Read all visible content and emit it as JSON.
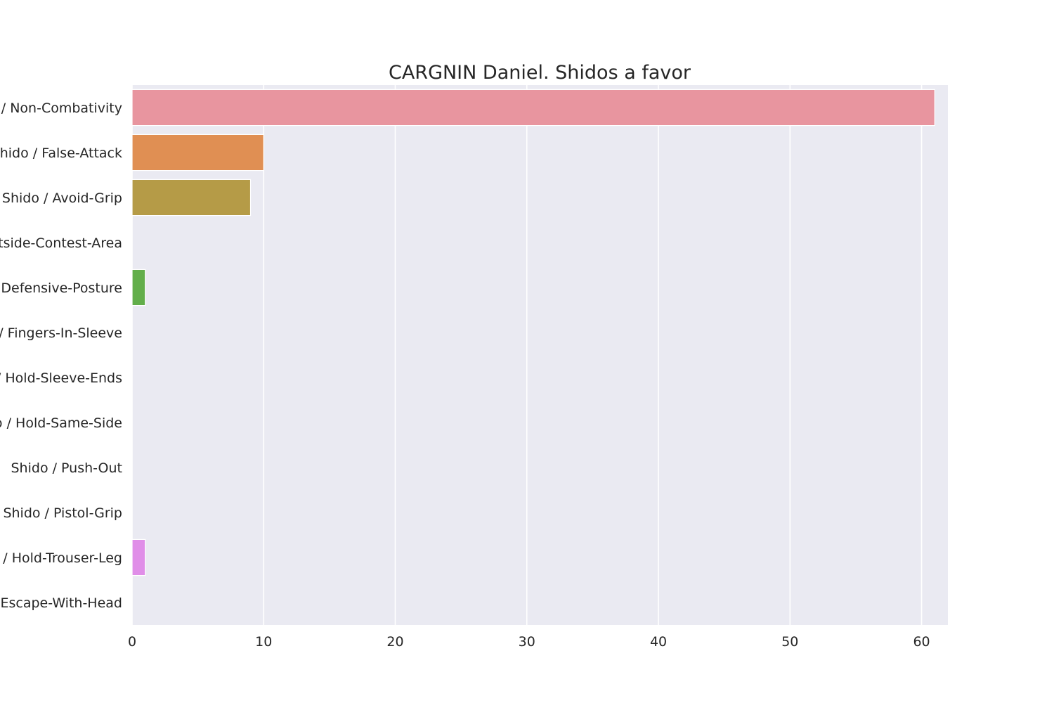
{
  "chart_data": {
    "type": "bar",
    "orientation": "horizontal",
    "title": "CARGNIN Daniel. Shidos a favor",
    "xlabel": "",
    "ylabel": "",
    "xlim": [
      0,
      62
    ],
    "xticks": [
      0,
      10,
      20,
      30,
      40,
      50,
      60
    ],
    "grid": true,
    "legend": "none",
    "categories": [
      "Shido / Non-Combativity",
      "Shido / False-Attack",
      "Shido / Avoid-Grip",
      "Shido / Outside-Contest-Area",
      "Shido / Defensive-Posture",
      "Shido / Fingers-In-Sleeve",
      "Shido / Hold-Sleeve-Ends",
      "Shido / Hold-Same-Side",
      "Shido / Push-Out",
      "Shido / Pistol-Grip",
      "Shido / Hold-Trouser-Leg",
      "Shido / Escape-With-Head"
    ],
    "values": [
      61,
      10,
      9,
      0,
      1,
      0,
      0,
      0,
      0,
      0,
      1,
      0
    ],
    "colors": [
      "#e8959f",
      "#e08f53",
      "#b59b47",
      "#8ea944",
      "#62ae4a",
      "#52b08d",
      "#55ae9f",
      "#57aab4",
      "#5aa5d0",
      "#9ba0eb",
      "#e08ee8",
      "#e98eb6"
    ],
    "background_color": "#eaeaf2",
    "grid_color": "#ffffff"
  }
}
